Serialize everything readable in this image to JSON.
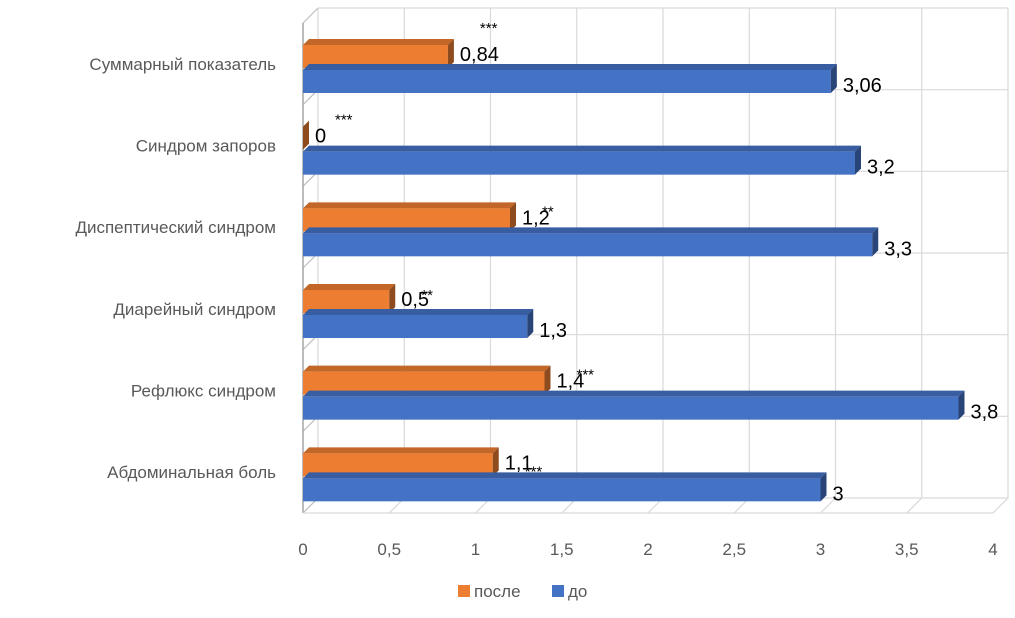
{
  "chart_data": {
    "type": "bar",
    "orientation": "horizontal",
    "style": "3d-clustered",
    "categories": [
      "Абдоминальная боль",
      "Рефлюкс синдром",
      "Диарейный синдром",
      "Диспептический синдром",
      "Синдром запоров",
      "Суммарный показатель"
    ],
    "series": [
      {
        "name": "после",
        "color": "#ED7D31",
        "values": [
          1.1,
          1.4,
          0.5,
          1.2,
          0,
          0.84
        ],
        "labels": [
          "1,1",
          "1,4",
          "0,5",
          "1,2",
          "0",
          "0,84"
        ]
      },
      {
        "name": "до",
        "color": "#4472C4",
        "values": [
          3,
          3.8,
          1.3,
          3.3,
          3.2,
          3.06
        ],
        "labels": [
          "3",
          "3,8",
          "1,3",
          "3,3",
          "3,2",
          "3,06"
        ]
      }
    ],
    "significance": [
      "***",
      "***",
      "**",
      "**",
      "***",
      "***"
    ],
    "xlim": [
      0,
      4
    ],
    "x_ticks": [
      0,
      0.5,
      1,
      1.5,
      2,
      2.5,
      3,
      3.5,
      4
    ],
    "x_tick_labels": [
      "0",
      "0,5",
      "1",
      "1,5",
      "2",
      "2,5",
      "3",
      "3,5",
      "4"
    ],
    "title": "",
    "xlabel": "",
    "ylabel": "",
    "grid": true,
    "legend_position": "bottom"
  }
}
